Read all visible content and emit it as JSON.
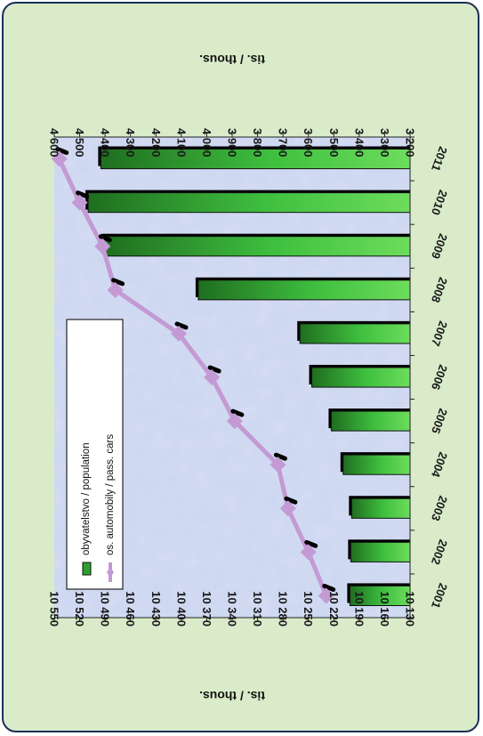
{
  "chart_data": {
    "type": "bar",
    "orientation": "rotated-90",
    "categories": [
      "2001",
      "2002",
      "2003",
      "2004",
      "2005",
      "2006",
      "2007",
      "2008",
      "2009",
      "2010",
      "2011"
    ],
    "series": [
      {
        "name": "obyvatelstvo / population",
        "kind": "bar",
        "color": "#2ea02e",
        "axis": "left",
        "values": [
          10201,
          10200,
          10199,
          10209,
          10223,
          10246,
          10260,
          10380,
          10491,
          10510,
          10495
        ]
      },
      {
        "name": "os. automobily / pass. cars",
        "kind": "line",
        "color": "#c39ad4",
        "axis": "right",
        "values": [
          3530,
          3600,
          3680,
          3720,
          3890,
          3980,
          4110,
          4360,
          4410,
          4500,
          4580
        ]
      }
    ],
    "left_axis": {
      "label": "tis. / thous.",
      "min": 10130,
      "max": 10550,
      "step": 30,
      "ticks": [
        "10 130",
        "10 160",
        "10 190",
        "10 220",
        "10 250",
        "10 280",
        "10 310",
        "10 340",
        "10 370",
        "10 400",
        "10 430",
        "10 460",
        "10 490",
        "10 520",
        "10 550"
      ]
    },
    "right_axis": {
      "label": "tis. / thous.",
      "min": 3200,
      "max": 4600,
      "step": 100,
      "ticks": [
        "3 200",
        "3 300",
        "3 400",
        "3 500",
        "3 600",
        "3 700",
        "3 800",
        "3 900",
        "4 000",
        "4 100",
        "4 200",
        "4 300",
        "4 400",
        "4 500",
        "4 600"
      ]
    },
    "legend": {
      "position": "inside, near value-axis maximum"
    },
    "grid": false
  },
  "colors": {
    "background": "#d9ebc9",
    "plot_background": "#cfd8ef",
    "border": "#1c2f55",
    "bar": "#2ea02e",
    "line": "#c39ad4"
  }
}
